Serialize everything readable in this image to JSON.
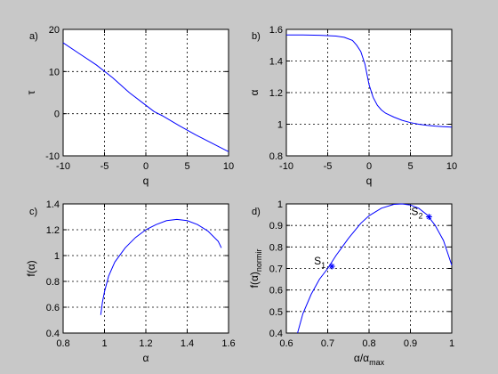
{
  "chart_data": [
    {
      "type": "line",
      "panel_label": "a)",
      "xlabel": "q",
      "ylabel": "τ",
      "xlim": [
        -10,
        10
      ],
      "ylim": [
        -10,
        20
      ],
      "xticks": [
        -10,
        -5,
        0,
        5,
        10
      ],
      "yticks": [
        -10,
        0,
        10,
        20
      ],
      "grid": true,
      "series": [
        {
          "color": "#0000ff",
          "x": [
            -10,
            -8,
            -6,
            -4,
            -2,
            0,
            1,
            2,
            4,
            6,
            8,
            10
          ],
          "y": [
            16.8,
            14.2,
            11.6,
            8.5,
            5.0,
            2.0,
            0.5,
            -0.5,
            -2.8,
            -5.0,
            -7.0,
            -9.0
          ]
        }
      ]
    },
    {
      "type": "line",
      "panel_label": "b)",
      "xlabel": "q",
      "ylabel": "α",
      "xlim": [
        -10,
        10
      ],
      "ylim": [
        0.8,
        1.6
      ],
      "xticks": [
        -10,
        -5,
        0,
        5,
        10
      ],
      "yticks": [
        0.8,
        1,
        1.2,
        1.4,
        1.6
      ],
      "grid": true,
      "series": [
        {
          "color": "#0000ff",
          "x": [
            -10,
            -8,
            -6,
            -4,
            -3,
            -2,
            -1.5,
            -1,
            -0.5,
            0,
            0.5,
            1,
            1.5,
            2,
            3,
            4,
            5,
            6,
            7,
            8,
            9,
            10
          ],
          "y": [
            1.565,
            1.565,
            1.563,
            1.558,
            1.55,
            1.53,
            1.5,
            1.46,
            1.38,
            1.25,
            1.17,
            1.12,
            1.09,
            1.07,
            1.045,
            1.025,
            1.01,
            1.0,
            0.993,
            0.988,
            0.985,
            0.982
          ]
        }
      ]
    },
    {
      "type": "line",
      "panel_label": "c)",
      "xlabel": "α",
      "ylabel": "f(α)",
      "xlim": [
        0.8,
        1.6
      ],
      "ylim": [
        0.4,
        1.4
      ],
      "xticks": [
        0.8,
        1,
        1.2,
        1.4,
        1.6
      ],
      "yticks": [
        0.4,
        0.6,
        0.8,
        1,
        1.2,
        1.4
      ],
      "grid": true,
      "series": [
        {
          "color": "#0000ff",
          "x": [
            0.982,
            0.99,
            1.0,
            1.02,
            1.05,
            1.1,
            1.15,
            1.2,
            1.25,
            1.3,
            1.35,
            1.4,
            1.45,
            1.5,
            1.55,
            1.565
          ],
          "y": [
            0.54,
            0.64,
            0.72,
            0.84,
            0.95,
            1.06,
            1.14,
            1.2,
            1.24,
            1.27,
            1.28,
            1.27,
            1.24,
            1.19,
            1.11,
            1.06
          ]
        }
      ]
    },
    {
      "type": "line",
      "panel_label": "d)",
      "xlabel": "α/α",
      "xlabel_sub": "max",
      "ylabel": "f(α)",
      "ylabel_sub": "normir",
      "xlim": [
        0.6,
        1.0
      ],
      "ylim": [
        0.4,
        1.0
      ],
      "xticks": [
        0.6,
        0.7,
        0.8,
        0.9,
        1
      ],
      "yticks": [
        0.4,
        0.5,
        0.6,
        0.7,
        0.8,
        0.9,
        1
      ],
      "grid": true,
      "series": [
        {
          "color": "#0000ff",
          "x": [
            0.627,
            0.64,
            0.66,
            0.68,
            0.7,
            0.72,
            0.75,
            0.78,
            0.8,
            0.83,
            0.86,
            0.88,
            0.9,
            0.92,
            0.94,
            0.96,
            0.98,
            1.0
          ],
          "y": [
            0.4,
            0.49,
            0.58,
            0.65,
            0.7,
            0.76,
            0.84,
            0.91,
            0.945,
            0.98,
            0.998,
            1.0,
            0.995,
            0.98,
            0.95,
            0.9,
            0.83,
            0.715
          ]
        }
      ],
      "points": [
        {
          "label": "S",
          "sub": "1",
          "x": 0.71,
          "y": 0.71
        },
        {
          "label": "S",
          "sub": "2",
          "x": 0.945,
          "y": 0.94
        }
      ]
    }
  ]
}
